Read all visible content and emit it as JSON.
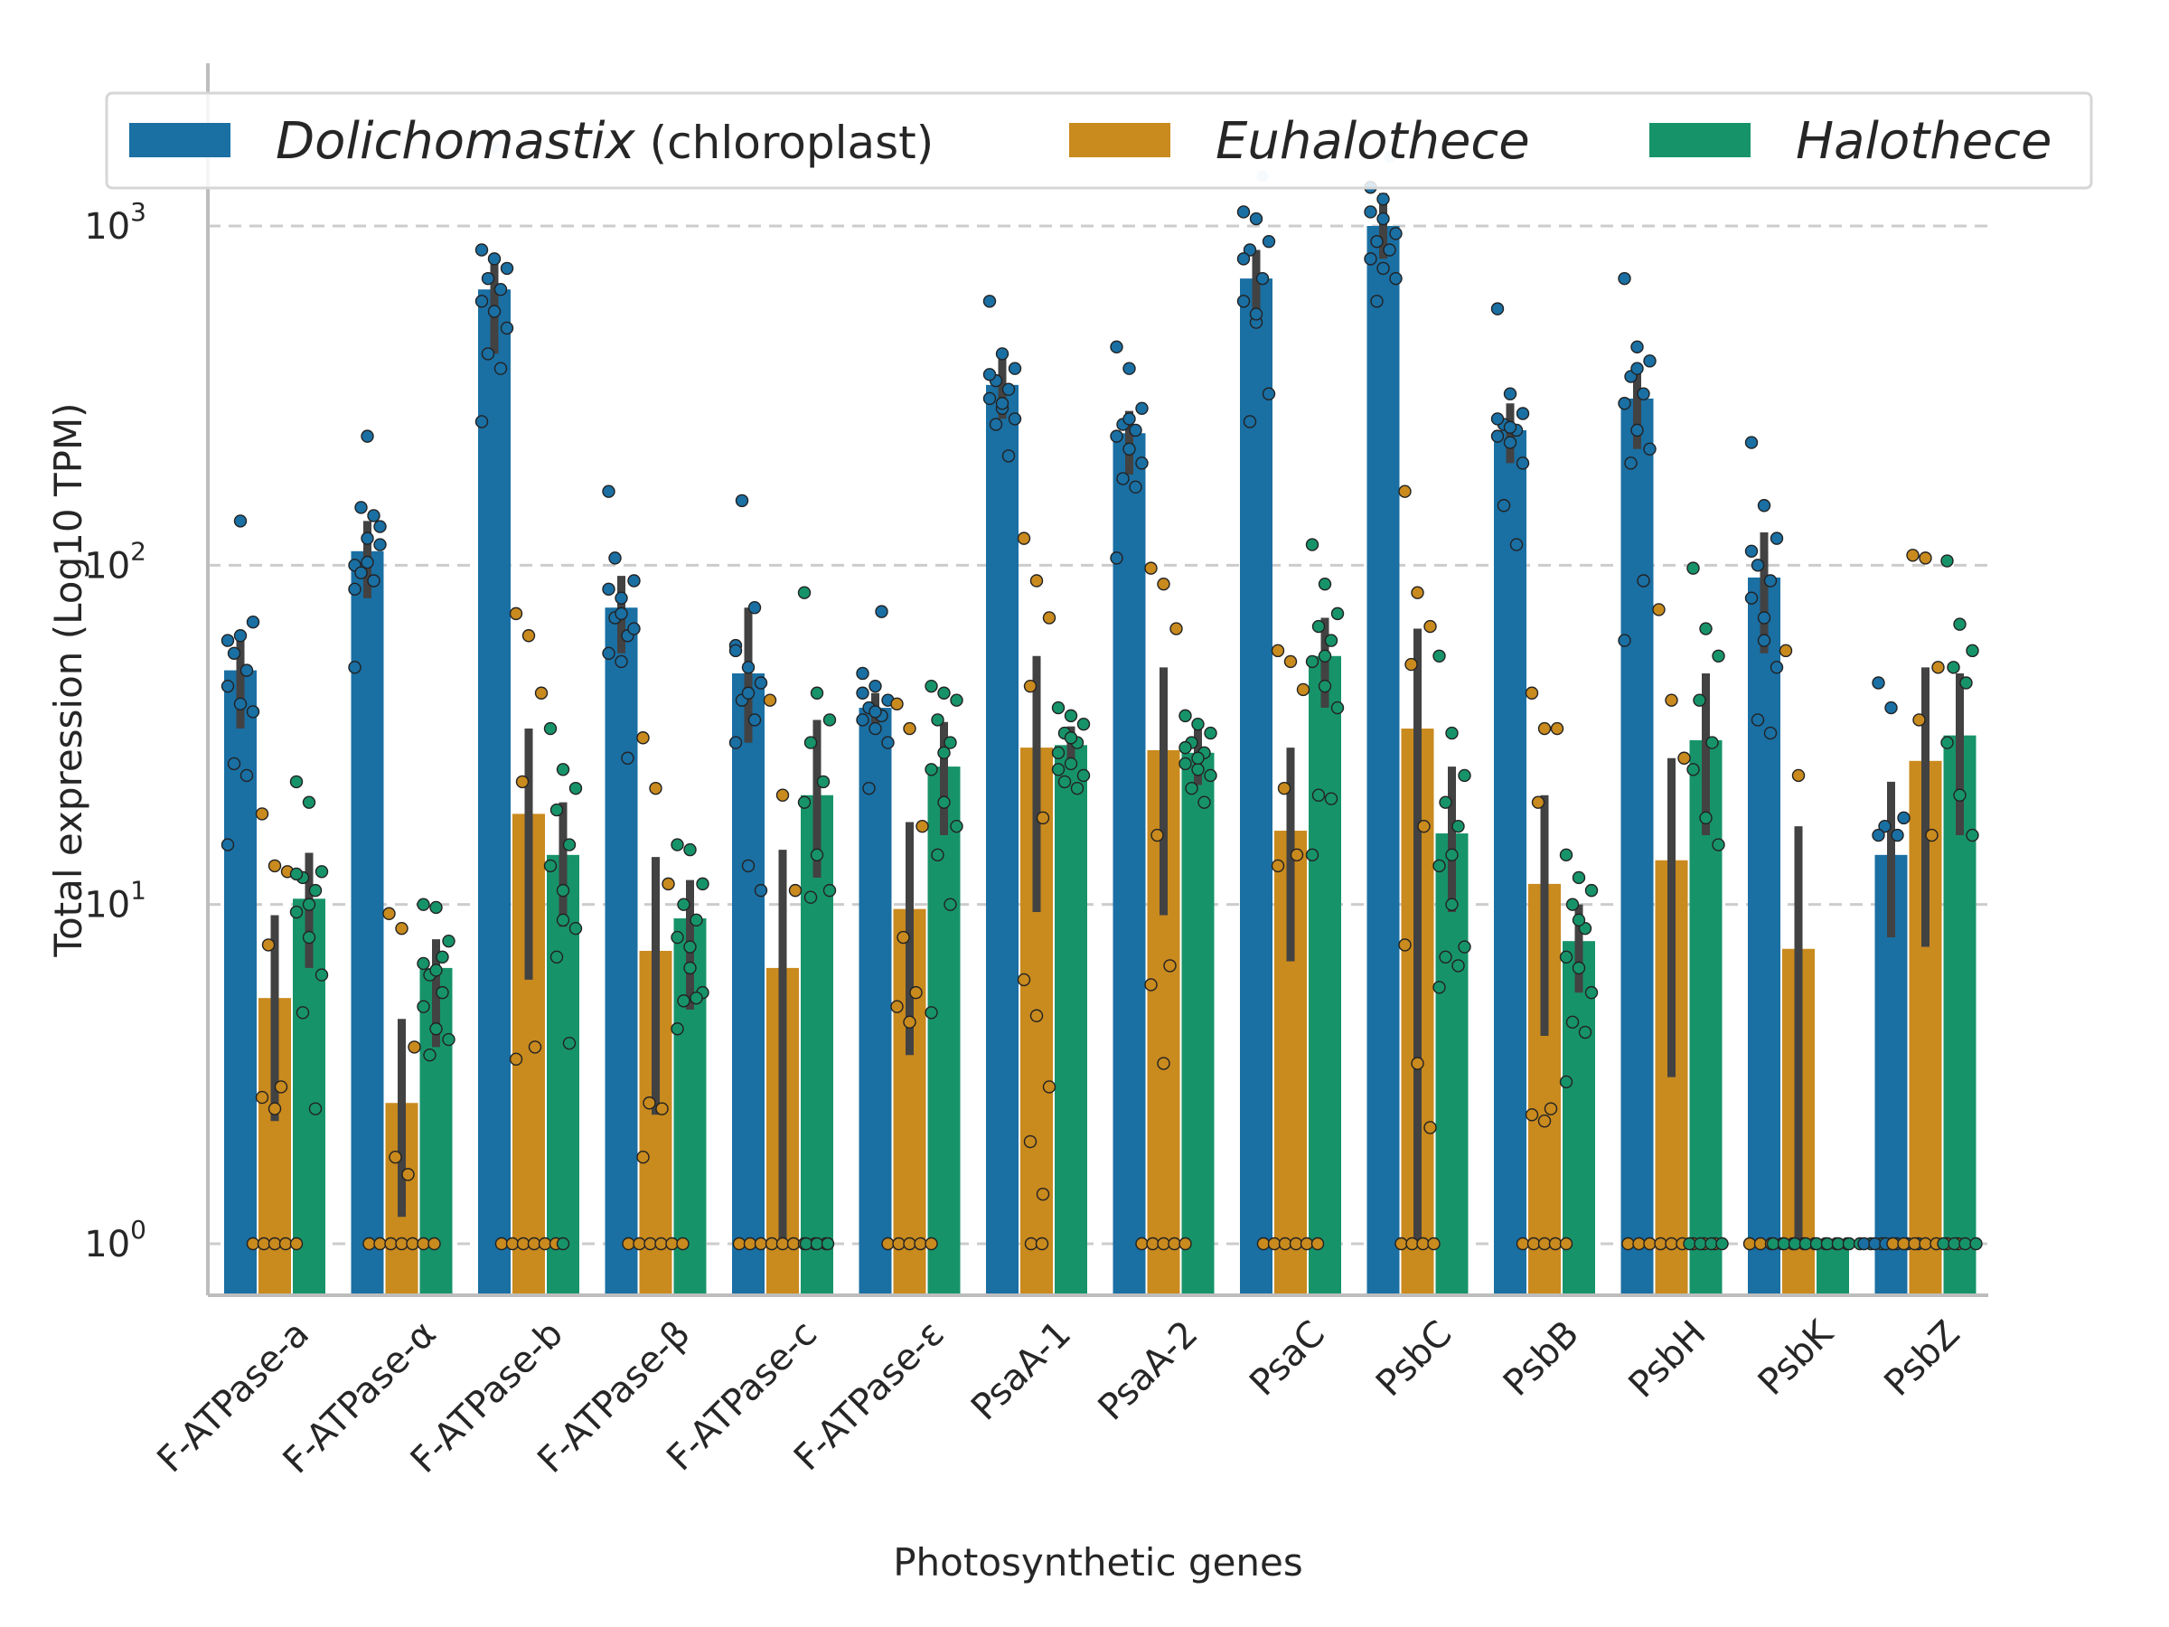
{
  "chart_data": {
    "type": "bar",
    "title": "",
    "xlabel": "Photosynthetic genes",
    "ylabel": "Total expression (Log10 TPM)",
    "y_scale": "log",
    "ylim": [
      0.7,
      1800
    ],
    "yticks": [
      {
        "value": 1,
        "label": "10",
        "exp": "0"
      },
      {
        "value": 10,
        "label": "10",
        "exp": "1"
      },
      {
        "value": 100,
        "label": "10",
        "exp": "2"
      },
      {
        "value": 1000,
        "label": "10",
        "exp": "3"
      }
    ],
    "grid": "horizontal-dashed",
    "legend_position": "top",
    "categories": [
      "F-ATPase-a",
      "F-ATPase-α",
      "F-ATPase-b",
      "F-ATPase-β",
      "F-ATPase-c",
      "F-ATPase-ε",
      "PsaA-1",
      "PsaA-2",
      "PsaC",
      "PsbC",
      "PsbB",
      "PsbH",
      "PsbK",
      "PsbZ"
    ],
    "series": [
      {
        "name": "Dolichomastix",
        "name_suffix": " (chloroplast)",
        "color": "#1a6fa3",
        "values": [
          49,
          110,
          650,
          75,
          48,
          38,
          340,
          245,
          700,
          1000,
          250,
          310,
          92,
          14
        ],
        "ci_low": [
          33,
          80,
          420,
          55,
          30,
          32,
          270,
          185,
          500,
          800,
          200,
          220,
          55,
          8
        ],
        "ci_high": [
          63,
          135,
          820,
          93,
          75,
          42,
          410,
          285,
          850,
          1250,
          300,
          380,
          125,
          23
        ],
        "points": [
          [
            60,
            62,
            68,
            55,
            49,
            44,
            39,
            37,
            26,
            24,
            15,
            135
          ],
          [
            100,
            102,
            115,
            95,
            90,
            85,
            120,
            130,
            148,
            140,
            50,
            240
          ],
          [
            850,
            800,
            750,
            700,
            650,
            600,
            560,
            500,
            420,
            380,
            265,
            1700
          ],
          [
            85,
            80,
            90,
            70,
            62,
            55,
            52,
            65,
            105,
            27,
            165,
            72
          ],
          [
            58,
            50,
            45,
            40,
            35,
            30,
            13,
            11,
            155,
            75,
            56,
            42
          ],
          [
            48,
            44,
            40,
            38,
            36,
            35,
            33,
            30,
            22,
            73,
            42,
            37
          ],
          [
            600,
            420,
            380,
            350,
            330,
            310,
            290,
            270,
            260,
            210,
            365,
            300
          ],
          [
            440,
            380,
            290,
            260,
            250,
            240,
            220,
            200,
            180,
            170,
            105,
            270
          ],
          [
            1100,
            1050,
            900,
            850,
            700,
            600,
            520,
            320,
            265,
            1400,
            800,
            550
          ],
          [
            1100,
            1050,
            950,
            900,
            850,
            800,
            750,
            700,
            600,
            1600,
            1300,
            1200
          ],
          [
            570,
            320,
            280,
            260,
            250,
            240,
            230,
            200,
            150,
            115,
            270,
            255
          ],
          [
            700,
            440,
            400,
            360,
            320,
            300,
            250,
            220,
            200,
            90,
            60,
            380
          ],
          [
            230,
            150,
            120,
            100,
            90,
            80,
            60,
            50,
            35,
            32,
            110,
            70
          ],
          [
            45,
            38,
            18,
            17,
            16,
            16,
            1,
            1,
            1,
            1,
            1,
            1
          ]
        ]
      },
      {
        "name": "Euhalothece",
        "name_suffix": "",
        "color": "#c98a1e",
        "values": [
          5.3,
          2.6,
          18.5,
          7.3,
          6.5,
          9.7,
          29,
          28.5,
          16.5,
          33,
          11.5,
          13.5,
          7.4,
          26.5
        ],
        "ci_low": [
          2.3,
          1.2,
          6,
          2.4,
          1,
          3.6,
          9.5,
          9.3,
          6.8,
          1,
          4.1,
          3.1,
          1,
          7.5
        ],
        "ci_high": [
          9.3,
          4.6,
          33,
          13.8,
          14.5,
          17.5,
          54,
          50,
          29,
          65,
          21,
          27,
          17,
          50
        ],
        "points": [
          [
            18.5,
            13,
            12.5,
            7.6,
            2.9,
            2.7,
            2.5,
            1,
            1,
            1,
            1,
            1
          ],
          [
            9.4,
            8.5,
            3.8,
            1.8,
            1.6,
            1,
            1,
            1,
            1,
            1,
            1,
            1
          ],
          [
            72,
            62,
            42,
            23,
            3.8,
            3.5,
            1,
            1,
            1,
            1,
            1,
            1
          ],
          [
            31,
            22,
            11.5,
            2.6,
            2.5,
            1.8,
            1,
            1,
            1,
            1,
            1,
            1
          ],
          [
            40,
            21,
            11,
            1,
            1,
            1,
            1,
            1,
            1,
            1,
            1,
            1
          ],
          [
            39,
            33,
            17,
            8,
            5.5,
            5,
            4.5,
            1,
            1,
            1,
            1,
            1
          ],
          [
            120,
            90,
            70,
            44,
            18,
            6,
            4.7,
            2.9,
            2,
            1.4,
            1,
            1
          ],
          [
            98,
            88,
            65,
            16,
            6.6,
            5.8,
            3.4,
            1,
            1,
            1,
            1,
            1
          ],
          [
            56,
            52,
            43,
            22,
            14,
            13,
            1,
            1,
            1,
            1,
            1,
            1
          ],
          [
            165,
            83,
            66,
            51,
            17,
            7.6,
            3.4,
            2.2,
            1,
            1,
            1,
            1
          ],
          [
            42,
            33,
            33,
            20,
            2.5,
            2.4,
            2.3,
            1,
            1,
            1,
            1,
            1
          ],
          [
            74,
            40,
            27,
            1,
            1,
            1,
            1,
            1,
            1,
            1,
            1,
            1
          ],
          [
            56,
            24,
            1,
            1,
            1,
            1,
            1,
            1,
            1,
            1,
            1,
            1
          ],
          [
            107,
            105,
            50,
            35,
            16,
            1,
            1,
            1,
            1,
            1,
            1,
            1
          ]
        ]
      },
      {
        "name": "Halothece",
        "name_suffix": "",
        "color": "#17936a",
        "values": [
          10.4,
          6.5,
          14,
          9.1,
          21,
          25.5,
          29.5,
          28,
          54,
          16.2,
          7.8,
          30.5,
          1,
          31.5
        ],
        "ci_low": [
          6.5,
          3.8,
          8.6,
          4.9,
          12,
          16,
          26,
          22.5,
          38,
          9.5,
          5.5,
          16,
          1,
          16
        ],
        "ci_high": [
          14.2,
          7.9,
          20,
          11.8,
          35,
          34.5,
          33.5,
          33,
          70,
          25.5,
          10,
          48,
          1,
          48
        ],
        "points": [
          [
            23,
            20,
            12.5,
            12,
            11,
            9.5,
            8,
            6.2,
            4.8,
            2.5,
            12.3,
            10
          ],
          [
            10,
            9.8,
            7.8,
            6.2,
            5.5,
            5,
            4.3,
            4,
            3.6,
            7,
            6.7,
            6.4
          ],
          [
            33,
            25,
            22,
            19,
            15,
            13,
            9,
            8.5,
            7,
            3.9,
            1,
            11
          ],
          [
            15,
            14.5,
            11.5,
            10,
            9,
            8,
            6.5,
            5.5,
            5.2,
            5.3,
            4.3,
            7.5
          ],
          [
            83,
            42,
            35,
            30,
            23,
            20,
            14,
            11,
            10.5,
            1,
            1,
            1
          ],
          [
            44,
            42,
            40,
            35,
            30,
            25,
            20,
            17,
            14,
            10,
            4.8,
            28
          ],
          [
            38,
            36,
            34,
            32,
            30,
            28,
            26,
            24,
            23,
            22,
            25,
            31
          ],
          [
            36,
            34,
            32,
            30,
            28,
            26,
            25,
            24,
            22,
            20,
            29,
            27
          ],
          [
            115,
            88,
            72,
            66,
            60,
            52,
            44,
            38,
            21,
            20.5,
            14,
            54
          ],
          [
            54,
            32,
            24,
            20,
            17,
            13,
            10,
            7.5,
            7.0,
            6.6,
            5.7,
            14
          ],
          [
            14,
            12,
            11,
            10,
            8.5,
            7,
            6.5,
            5.5,
            4.5,
            4.2,
            3,
            9
          ],
          [
            98,
            65,
            54,
            40,
            30,
            25,
            18,
            15,
            1,
            1,
            1,
            1
          ],
          [
            1,
            1,
            1,
            1,
            1,
            1,
            1,
            1,
            1,
            1,
            1,
            1
          ],
          [
            103,
            67,
            56,
            50,
            45,
            30,
            21,
            16,
            1,
            1,
            1,
            1
          ]
        ]
      }
    ]
  }
}
